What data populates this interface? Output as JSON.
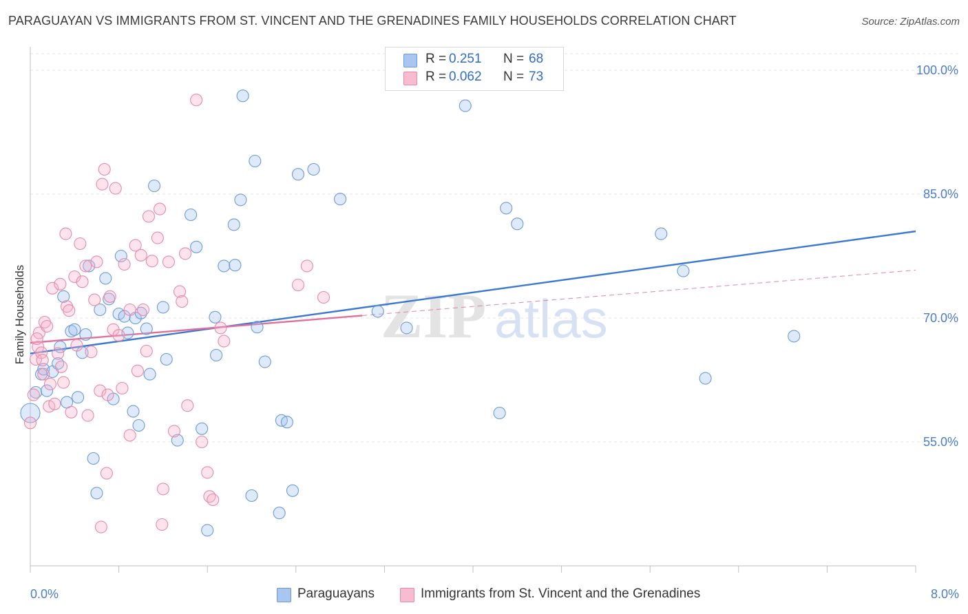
{
  "title": "PARAGUAYAN VS IMMIGRANTS FROM ST. VINCENT AND THE GRENADINES FAMILY HOUSEHOLDS CORRELATION CHART",
  "source": "Source: ZipAtlas.com",
  "watermark": {
    "zip": "ZIP",
    "atlas": "atlas"
  },
  "legend": {
    "r_label": "R =",
    "n_label": "N =",
    "rows": [
      {
        "r": "0.251",
        "n": "68",
        "color": "#a9c6f0",
        "edge": "#6c9ad9"
      },
      {
        "r": "0.062",
        "n": "73",
        "color": "#f7bcd0",
        "edge": "#e68aa8"
      }
    ]
  },
  "bottom_legend": [
    "Paraguayans",
    "Immigrants from St. Vincent and the Grenadines"
  ],
  "chart_data": {
    "type": "scatter",
    "ylabel": "Family Households",
    "xlim": [
      0,
      8
    ],
    "ylim": [
      40,
      102
    ],
    "x_tick_labels": [
      "0.0%",
      "8.0%"
    ],
    "y_ticks": [
      {
        "v": 55,
        "label": "55.0%"
      },
      {
        "v": 70,
        "label": "70.0%"
      },
      {
        "v": 85,
        "label": "85.0%"
      },
      {
        "v": 100,
        "label": "100.0%"
      }
    ],
    "grid": true,
    "colors": {
      "blue": "#3b78d3",
      "pink": "#e0709a",
      "tick": "#4a7cc9"
    },
    "series": [
      {
        "name": "Paraguayans",
        "fill": "rgba(160,192,238,0.35)",
        "stroke": "#6c9ad9",
        "trend": {
          "x0": 0,
          "y0": 65.7,
          "x1": 8,
          "y1": 80.5
        },
        "points": [
          [
            0.0,
            58.5
          ],
          [
            0.05,
            61.0
          ],
          [
            0.1,
            63.2
          ],
          [
            0.12,
            63.8
          ],
          [
            0.15,
            61.2
          ],
          [
            0.2,
            63.5
          ],
          [
            0.25,
            64.5
          ],
          [
            0.27,
            66.5
          ],
          [
            0.3,
            72.6
          ],
          [
            0.33,
            59.8
          ],
          [
            0.37,
            68.4
          ],
          [
            0.4,
            68.6
          ],
          [
            0.43,
            60.4
          ],
          [
            0.47,
            65.8
          ],
          [
            0.5,
            68.0
          ],
          [
            0.53,
            76.3
          ],
          [
            0.57,
            53.0
          ],
          [
            0.6,
            48.8
          ],
          [
            0.63,
            71.0
          ],
          [
            0.68,
            74.8
          ],
          [
            0.71,
            72.3
          ],
          [
            0.75,
            60.2
          ],
          [
            0.8,
            70.5
          ],
          [
            0.82,
            77.5
          ],
          [
            0.85,
            70.2
          ],
          [
            0.88,
            68.2
          ],
          [
            0.93,
            58.7
          ],
          [
            0.95,
            70.0
          ],
          [
            0.98,
            57.0
          ],
          [
            1.0,
            70.6
          ],
          [
            1.05,
            68.7
          ],
          [
            1.08,
            63.2
          ],
          [
            1.12,
            86.0
          ],
          [
            1.2,
            71.3
          ],
          [
            1.23,
            65.0
          ],
          [
            1.33,
            55.2
          ],
          [
            1.45,
            82.5
          ],
          [
            1.5,
            78.6
          ],
          [
            1.55,
            56.6
          ],
          [
            1.6,
            44.3
          ],
          [
            1.67,
            70.1
          ],
          [
            1.68,
            65.5
          ],
          [
            1.75,
            76.3
          ],
          [
            1.84,
            81.3
          ],
          [
            1.85,
            76.4
          ],
          [
            1.9,
            84.3
          ],
          [
            1.92,
            96.9
          ],
          [
            2.0,
            48.5
          ],
          [
            2.03,
            89.0
          ],
          [
            2.05,
            68.9
          ],
          [
            2.12,
            64.7
          ],
          [
            2.25,
            46.4
          ],
          [
            2.27,
            57.6
          ],
          [
            2.32,
            57.4
          ],
          [
            2.37,
            49.1
          ],
          [
            2.42,
            87.4
          ],
          [
            2.56,
            88.0
          ],
          [
            2.8,
            84.4
          ],
          [
            3.14,
            70.8
          ],
          [
            3.4,
            68.8
          ],
          [
            3.93,
            95.7
          ],
          [
            4.24,
            58.5
          ],
          [
            4.3,
            83.3
          ],
          [
            4.4,
            81.4
          ],
          [
            5.7,
            80.2
          ],
          [
            5.9,
            75.7
          ],
          [
            6.1,
            62.7
          ],
          [
            6.9,
            67.8
          ]
        ]
      },
      {
        "name": "Immigrants from St. Vincent and the Grenadines",
        "fill": "rgba(245,175,200,0.35)",
        "stroke": "#e68aa8",
        "trend": {
          "x0": 0,
          "y0": 67.0,
          "x1": 3.0,
          "y1": 70.3
        },
        "trend_ext": {
          "x0": 3.0,
          "y0": 70.3,
          "x1": 8,
          "y1": 75.8
        },
        "points": [
          [
            0.0,
            57.3
          ],
          [
            0.03,
            60.7
          ],
          [
            0.05,
            65.0
          ],
          [
            0.07,
            66.5
          ],
          [
            0.08,
            68.2
          ],
          [
            0.1,
            65.8
          ],
          [
            0.12,
            63.2
          ],
          [
            0.13,
            69.5
          ],
          [
            0.15,
            69.0
          ],
          [
            0.17,
            59.3
          ],
          [
            0.18,
            62.0
          ],
          [
            0.2,
            73.6
          ],
          [
            0.22,
            59.6
          ],
          [
            0.25,
            65.7
          ],
          [
            0.27,
            74.1
          ],
          [
            0.28,
            64.1
          ],
          [
            0.3,
            62.2
          ],
          [
            0.32,
            80.2
          ],
          [
            0.33,
            71.4
          ],
          [
            0.35,
            70.9
          ],
          [
            0.37,
            58.6
          ],
          [
            0.4,
            75.0
          ],
          [
            0.42,
            66.7
          ],
          [
            0.45,
            79.0
          ],
          [
            0.47,
            74.4
          ],
          [
            0.5,
            76.3
          ],
          [
            0.52,
            58.2
          ],
          [
            0.55,
            65.9
          ],
          [
            0.58,
            72.2
          ],
          [
            0.6,
            76.8
          ],
          [
            0.63,
            61.2
          ],
          [
            0.65,
            86.2
          ],
          [
            0.67,
            88.0
          ],
          [
            0.69,
            51.2
          ],
          [
            0.7,
            60.7
          ],
          [
            0.72,
            72.6
          ],
          [
            0.75,
            68.6
          ],
          [
            0.77,
            85.7
          ],
          [
            0.8,
            67.9
          ],
          [
            0.83,
            61.5
          ],
          [
            0.85,
            76.5
          ],
          [
            0.9,
            55.8
          ],
          [
            0.95,
            78.8
          ],
          [
            0.97,
            63.6
          ],
          [
            1.0,
            77.6
          ],
          [
            1.02,
            71.0
          ],
          [
            1.05,
            66.0
          ],
          [
            1.07,
            82.3
          ],
          [
            1.1,
            76.9
          ],
          [
            1.15,
            79.7
          ],
          [
            1.17,
            83.2
          ],
          [
            1.19,
            45.0
          ],
          [
            1.2,
            49.3
          ],
          [
            1.25,
            76.8
          ],
          [
            1.3,
            56.3
          ],
          [
            1.35,
            73.2
          ],
          [
            1.37,
            72.0
          ],
          [
            1.4,
            77.8
          ],
          [
            1.42,
            59.4
          ],
          [
            1.5,
            96.4
          ],
          [
            1.55,
            55.0
          ],
          [
            1.6,
            51.3
          ],
          [
            1.62,
            48.4
          ],
          [
            1.65,
            48.0
          ],
          [
            1.72,
            68.8
          ],
          [
            1.75,
            67.2
          ],
          [
            2.42,
            74.0
          ],
          [
            2.5,
            76.3
          ],
          [
            2.65,
            72.5
          ],
          [
            0.06,
            67.5
          ],
          [
            0.9,
            71.0
          ],
          [
            0.11,
            64.9
          ],
          [
            0.64,
            44.7
          ]
        ]
      }
    ]
  }
}
